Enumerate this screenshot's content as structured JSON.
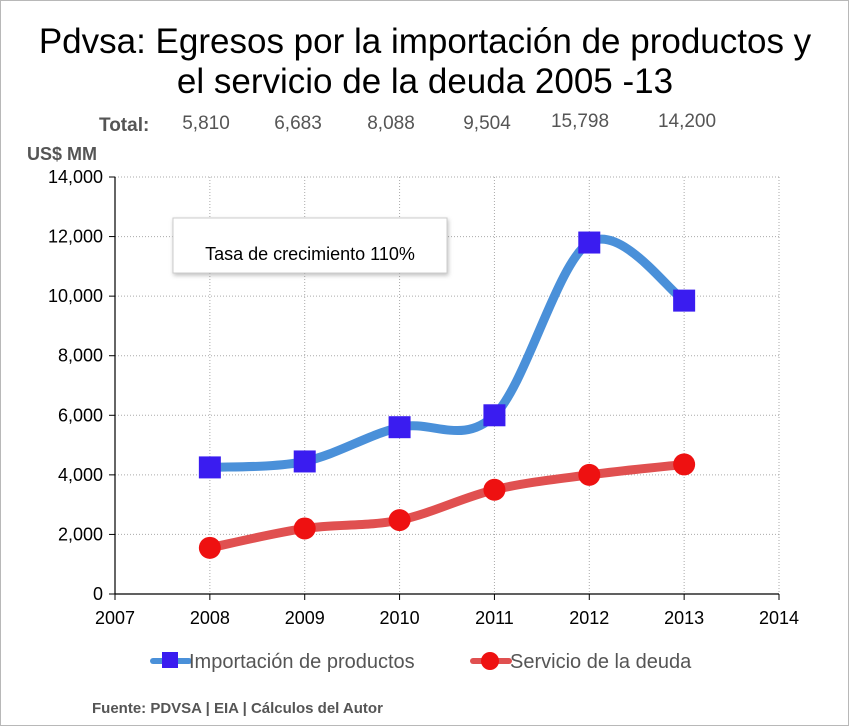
{
  "title_line1": "Pdvsa: Egresos por la importación de productos y",
  "title_line2": "el servicio de la deuda 2005 -13",
  "totals_label": "Total:",
  "totals": [
    "5,810",
    "6,683",
    "8,088",
    "9,504",
    "15,798",
    "14,200"
  ],
  "unit_label": "US$ MM",
  "annotation": "Tasa de crecimiento 110%",
  "source": "Fuente: PDVSA | EIA  | Cálculos del Autor",
  "colors": {
    "importacion": "#4a90d9",
    "importacion_marker": "#3a1cf0",
    "deuda": "#e05050",
    "deuda_marker": "#ee1111",
    "grid": "#aaaaaa"
  },
  "chart_data": {
    "type": "line",
    "x_ticks": [
      2007,
      2008,
      2009,
      2010,
      2011,
      2012,
      2013,
      2014
    ],
    "y_ticks": [
      "0",
      "2,000",
      "4,000",
      "6,000",
      "8,000",
      "10,000",
      "12,000",
      "14,000"
    ],
    "xlim": [
      2007,
      2014
    ],
    "ylim": [
      0,
      14000
    ],
    "grid": true,
    "legend_position": "bottom",
    "series": [
      {
        "name": "Importación de productos",
        "marker": "square",
        "x": [
          2008,
          2009,
          2010,
          2011,
          2012,
          2013
        ],
        "y": [
          4250,
          4450,
          5600,
          6000,
          11800,
          9850
        ]
      },
      {
        "name": "Servicio de la deuda",
        "marker": "circle",
        "x": [
          2008,
          2009,
          2010,
          2011,
          2012,
          2013
        ],
        "y": [
          1550,
          2200,
          2480,
          3500,
          4000,
          4350
        ]
      }
    ]
  }
}
